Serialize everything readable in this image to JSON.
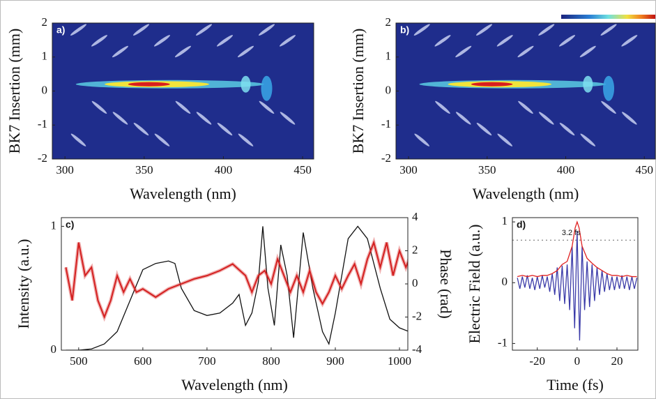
{
  "chart_data": [
    {
      "type": "heatmap",
      "panel_label": "a)",
      "xlabel": "Wavelength (nm)",
      "ylabel": "BK7 Insertion (mm)",
      "xlim": [
        292,
        457
      ],
      "xticks": [
        300,
        350,
        400,
        450
      ],
      "ylim": [
        -2,
        2
      ],
      "yticks": [
        -2,
        -1,
        0,
        1,
        2
      ]
    },
    {
      "type": "heatmap",
      "panel_label": "b)",
      "xlabel": "Wavelength (nm)",
      "ylabel": "BK7 Insertion (mm)",
      "xlim": [
        292,
        457
      ],
      "xticks": [
        300,
        350,
        400,
        450
      ],
      "ylim": [
        -2,
        2
      ],
      "yticks": [
        -2,
        -1,
        0,
        1,
        2
      ]
    },
    {
      "type": "line",
      "panel_label": "c)",
      "xlabel": "Wavelength (nm)",
      "ylabel": "Intensity (a.u.)",
      "y2label": "Phase (rad)",
      "xlim": [
        473,
        1013
      ],
      "xticks": [
        500,
        600,
        700,
        800,
        900,
        1000
      ],
      "ylim": [
        0,
        1.07
      ],
      "yticks": [
        0,
        1
      ],
      "y2lim": [
        -4,
        4
      ],
      "y2ticks": [
        -4,
        -2,
        0,
        2,
        4
      ],
      "series": [
        {
          "color": "#111111",
          "x": [
            480,
            500,
            520,
            540,
            560,
            580,
            600,
            620,
            640,
            650,
            660,
            680,
            700,
            720,
            740,
            750,
            760,
            770,
            780,
            787,
            795,
            805,
            815,
            825,
            835,
            850,
            865,
            880,
            890,
            900,
            920,
            935,
            950,
            970,
            985,
            1000,
            1020
          ],
          "values": [
            0,
            0,
            0.01,
            0.05,
            0.15,
            0.4,
            0.65,
            0.7,
            0.72,
            0.7,
            0.5,
            0.32,
            0.28,
            0.3,
            0.38,
            0.45,
            0.2,
            0.3,
            0.55,
            1.0,
            0.5,
            0.2,
            0.85,
            0.6,
            0.1,
            0.95,
            0.5,
            0.15,
            0.05,
            0.3,
            0.9,
            1.0,
            0.9,
            0.5,
            0.25,
            0.18,
            0.14
          ]
        },
        {
          "color": "#d42020",
          "axis": "y2",
          "x": [
            480,
            490,
            500,
            510,
            520,
            530,
            540,
            550,
            560,
            570,
            580,
            590,
            600,
            620,
            640,
            660,
            680,
            700,
            720,
            740,
            760,
            770,
            780,
            790,
            800,
            810,
            820,
            830,
            840,
            850,
            860,
            870,
            880,
            890,
            900,
            910,
            920,
            930,
            940,
            950,
            960,
            970,
            980,
            990,
            1000,
            1010,
            1020
          ],
          "values": [
            1,
            -1,
            2.5,
            0.5,
            1,
            -1,
            -2,
            -1,
            0.5,
            -0.5,
            0.3,
            -0.5,
            -0.3,
            -0.8,
            -0.3,
            0,
            0.3,
            0.5,
            0.8,
            1.2,
            0.5,
            -0.5,
            0.5,
            0.8,
            0,
            1.5,
            0.5,
            -0.5,
            0.5,
            -0.5,
            0.8,
            -0.5,
            -1.2,
            -0.5,
            0.5,
            -0.3,
            0.5,
            1.2,
            0,
            1.5,
            2.5,
            1,
            2.5,
            0.5,
            2,
            1,
            2
          ]
        }
      ]
    },
    {
      "type": "line",
      "panel_label": "d)",
      "xlabel": "Time (fs)",
      "ylabel": "Electric Field (a.u.)",
      "xlim": [
        -32.5,
        30.5
      ],
      "xticks": [
        -20,
        0,
        20
      ],
      "ylim": [
        -1.11,
        1.07
      ],
      "yticks": [
        -1,
        0,
        1
      ],
      "hline": 0.7,
      "annotation": "3.2 fs",
      "series": [
        {
          "color": "#3a3aa8",
          "x": [
            -30,
            -28.75,
            -27.5,
            -26.25,
            -25,
            -23.75,
            -22.5,
            -21.25,
            -20,
            -18.75,
            -17.5,
            -16.25,
            -15,
            -13.75,
            -12.5,
            -11.25,
            -10,
            -8.75,
            -7.5,
            -6.25,
            -5,
            -3.75,
            -2.5,
            -1.25,
            0,
            1.25,
            2.5,
            3.75,
            5,
            6.25,
            7.5,
            8.75,
            10,
            11.25,
            12.5,
            13.75,
            15,
            16.25,
            17.5,
            18.75,
            20,
            21.25,
            22.5,
            23.75,
            25,
            26.25,
            27.5,
            28.75,
            30
          ],
          "values": [
            0.08,
            -0.1,
            0.1,
            -0.08,
            0.12,
            -0.1,
            0.08,
            -0.12,
            0.1,
            -0.1,
            0.12,
            -0.08,
            0.1,
            -0.15,
            0.15,
            -0.2,
            0.25,
            -0.3,
            0.28,
            -0.35,
            0.3,
            -0.45,
            0.6,
            -0.75,
            0.85,
            -0.95,
            0.6,
            -0.45,
            0.35,
            -0.4,
            0.3,
            -0.3,
            0.25,
            -0.2,
            0.2,
            -0.15,
            0.15,
            -0.12,
            0.1,
            -0.12,
            0.1,
            -0.1,
            0.12,
            -0.1,
            0.1,
            -0.12,
            0.1,
            -0.1,
            0.08
          ]
        },
        {
          "color": "#e02020",
          "x": [
            -30,
            -27.5,
            -25,
            -22.5,
            -20,
            -17.5,
            -15,
            -12.5,
            -10,
            -7.5,
            -5,
            -2.5,
            -1,
            0,
            1,
            2.5,
            5,
            7.5,
            10,
            12.5,
            15,
            17.5,
            20,
            22.5,
            25,
            27.5,
            30
          ],
          "values": [
            0.1,
            0.12,
            0.1,
            0.12,
            0.1,
            0.12,
            0.12,
            0.15,
            0.2,
            0.3,
            0.35,
            0.6,
            0.9,
            1.0,
            0.9,
            0.6,
            0.4,
            0.32,
            0.25,
            0.2,
            0.15,
            0.12,
            0.12,
            0.1,
            0.12,
            0.1,
            0.1
          ]
        }
      ]
    }
  ]
}
